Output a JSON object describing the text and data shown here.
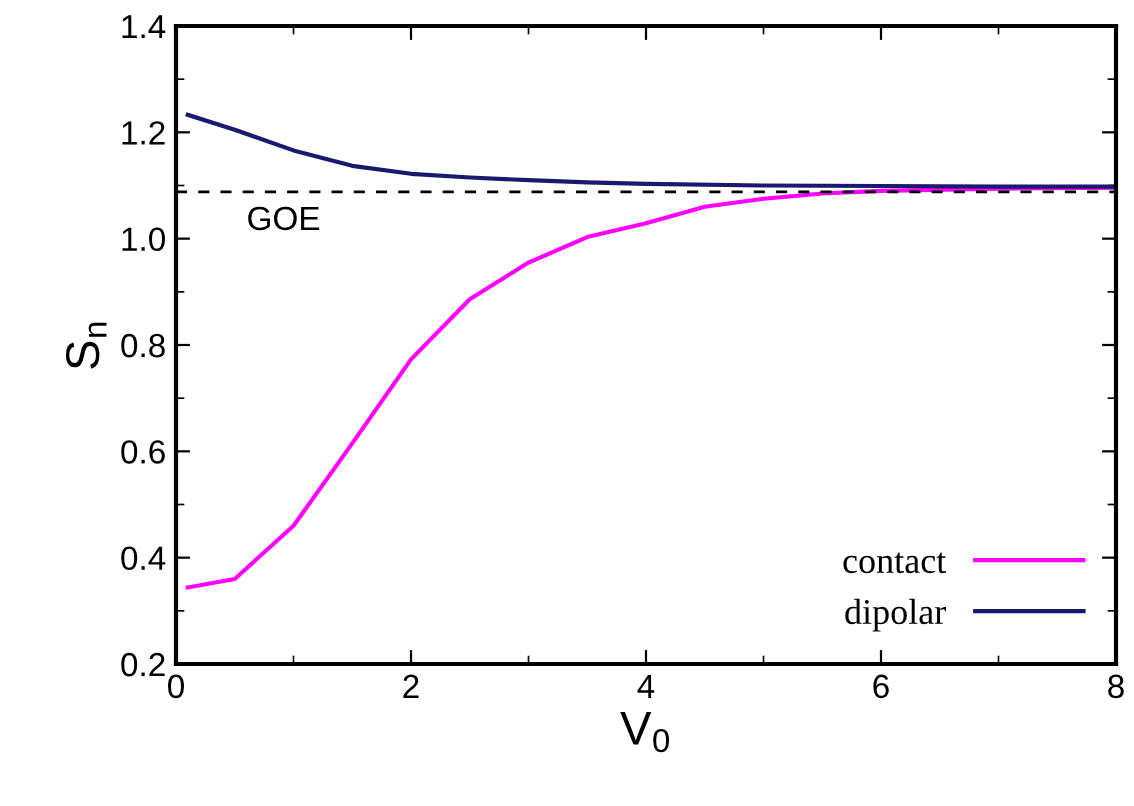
{
  "chart_data": {
    "type": "line",
    "xlabel": "V$_{0}$",
    "ylabel": "S$_{n}$",
    "xlim": [
      0,
      8
    ],
    "xticks": [
      0,
      2,
      4,
      6,
      8
    ],
    "ylim": [
      0.2,
      1.4
    ],
    "yticks": [
      0.2,
      0.4,
      0.6,
      0.8,
      {
        "value": 1,
        "label": "1.0"
      },
      1.2,
      1.4
    ],
    "series": [
      {
        "name": "contact",
        "color": "#ff00ff",
        "x": [
          0.1,
          0.5,
          1,
          1.5,
          2,
          2.5,
          3,
          3.5,
          4,
          4.5,
          5,
          5.5,
          6,
          7,
          8
        ],
        "values": [
          0.344,
          0.36,
          0.46,
          0.615,
          0.773,
          0.886,
          0.955,
          1.003,
          1.029,
          1.06,
          1.075,
          1.085,
          1.09,
          1.094,
          1.096
        ]
      },
      {
        "name": "dipolar",
        "color": "#191970",
        "x": [
          0.1,
          0.5,
          1,
          1.5,
          2,
          2.5,
          3,
          3.5,
          4,
          5,
          6,
          7,
          8
        ],
        "values": [
          1.233,
          1.205,
          1.166,
          1.137,
          1.122,
          1.115,
          1.11,
          1.106,
          1.103,
          1.1,
          1.099,
          1.098,
          1.098
        ]
      }
    ],
    "ref_lines": [
      {
        "axis": "y",
        "value": 1.088,
        "label": "GOE",
        "color": "#000000",
        "line_style": "dashed"
      }
    ],
    "legend": "bottom right",
    "grid": false,
    "marker": "none",
    "line_style": "solid"
  }
}
